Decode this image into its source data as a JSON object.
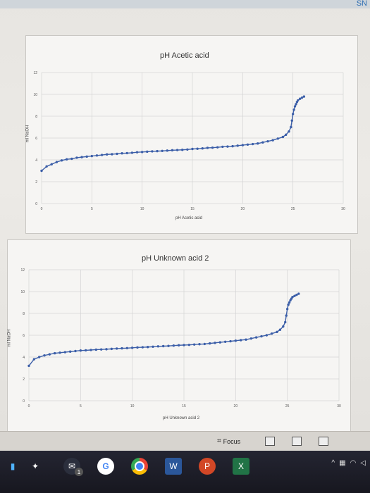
{
  "window": {
    "corner_text": "SN"
  },
  "chart_data": [
    {
      "type": "scatter",
      "title": "pH Acetic acid",
      "xlabel": "pH Acetic acid",
      "ylabel": "ml NaOH",
      "xlim": [
        0,
        30
      ],
      "ylim": [
        0,
        12
      ],
      "x_ticks": [
        "0",
        "5",
        "10",
        "15",
        "20",
        "25",
        "30"
      ],
      "y_ticks": [
        "0",
        "2",
        "4",
        "6",
        "8",
        "10",
        "12"
      ],
      "series": [
        {
          "x": [
            0,
            0.5,
            1,
            1.5,
            2,
            2.5,
            3,
            3.5,
            4,
            4.5,
            5,
            5.5,
            6,
            6.5,
            7,
            7.5,
            8,
            8.5,
            9,
            9.5,
            10,
            10.5,
            11,
            11.5,
            12,
            12.5,
            13,
            13.5,
            14,
            14.5,
            15,
            15.5,
            16,
            16.5,
            17,
            17.5,
            18,
            18.5,
            19,
            19.5,
            20,
            20.5,
            21,
            21.5,
            22,
            22.5,
            23,
            23.5,
            24,
            24.3,
            24.6,
            24.8,
            24.9,
            25,
            25.1,
            25.2,
            25.3,
            25.4,
            25.5,
            25.7,
            25.9,
            26.1
          ],
          "y": [
            3.0,
            3.4,
            3.6,
            3.8,
            3.95,
            4.05,
            4.1,
            4.2,
            4.25,
            4.3,
            4.35,
            4.4,
            4.45,
            4.5,
            4.52,
            4.55,
            4.6,
            4.62,
            4.65,
            4.7,
            4.72,
            4.75,
            4.78,
            4.8,
            4.82,
            4.85,
            4.88,
            4.9,
            4.92,
            4.95,
            5.0,
            5.02,
            5.05,
            5.1,
            5.12,
            5.15,
            5.2,
            5.22,
            5.25,
            5.3,
            5.35,
            5.4,
            5.45,
            5.5,
            5.6,
            5.7,
            5.8,
            5.95,
            6.1,
            6.3,
            6.6,
            7.0,
            7.6,
            8.2,
            8.6,
            8.9,
            9.1,
            9.3,
            9.45,
            9.6,
            9.7,
            9.8
          ]
        }
      ]
    },
    {
      "type": "scatter",
      "title": "pH Unknown acid 2",
      "xlabel": "pH Unknown acid 2",
      "ylabel": "ml NaOH",
      "xlim": [
        0,
        30
      ],
      "ylim": [
        0,
        12
      ],
      "x_ticks": [
        "0",
        "5",
        "10",
        "15",
        "20",
        "25",
        "30"
      ],
      "y_ticks": [
        "0",
        "2",
        "4",
        "6",
        "8",
        "10",
        "12"
      ],
      "series": [
        {
          "x": [
            0,
            0.5,
            1,
            1.5,
            2,
            2.5,
            3,
            3.5,
            4,
            4.5,
            5,
            5.5,
            6,
            6.5,
            7,
            7.5,
            8,
            8.5,
            9,
            9.5,
            10,
            10.5,
            11,
            11.5,
            12,
            12.5,
            13,
            13.5,
            14,
            14.5,
            15,
            15.5,
            16,
            16.5,
            17,
            17.5,
            18,
            18.5,
            19,
            19.5,
            20,
            20.5,
            21,
            21.5,
            22,
            22.5,
            23,
            23.5,
            24,
            24.3,
            24.6,
            24.8,
            24.9,
            25,
            25.1,
            25.2,
            25.3,
            25.4,
            25.5,
            25.7,
            25.9,
            26.1
          ],
          "y": [
            3.2,
            3.8,
            4.0,
            4.15,
            4.25,
            4.35,
            4.4,
            4.45,
            4.5,
            4.55,
            4.6,
            4.62,
            4.65,
            4.68,
            4.7,
            4.72,
            4.75,
            4.78,
            4.8,
            4.82,
            4.85,
            4.88,
            4.9,
            4.92,
            4.95,
            4.98,
            5.0,
            5.02,
            5.05,
            5.08,
            5.1,
            5.12,
            5.15,
            5.18,
            5.2,
            5.25,
            5.3,
            5.35,
            5.4,
            5.45,
            5.5,
            5.55,
            5.6,
            5.7,
            5.8,
            5.9,
            6.0,
            6.15,
            6.3,
            6.5,
            6.8,
            7.2,
            7.8,
            8.4,
            8.8,
            9.0,
            9.2,
            9.35,
            9.5,
            9.6,
            9.7,
            9.8
          ]
        }
      ]
    }
  ],
  "statusbar": {
    "focus_label": "Focus"
  },
  "taskbar": {
    "badge_count": "1",
    "word_letter": "W",
    "ppt_letter": "P",
    "excel_letter": "X"
  },
  "colors": {
    "series": "#3b5ea8",
    "grid": "#d4d4d4"
  }
}
